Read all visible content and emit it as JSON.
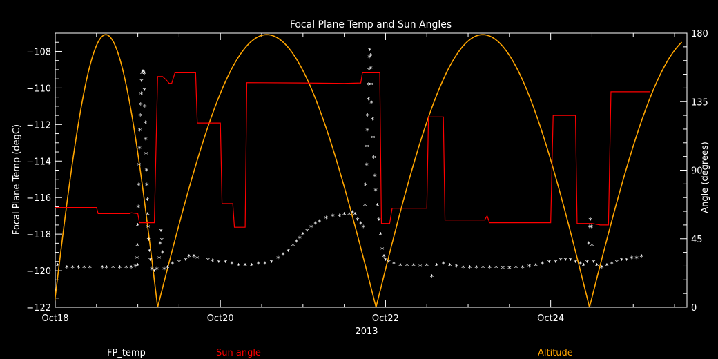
{
  "chart_data": {
    "type": "line",
    "title": "Focal Plane Temp and Sun Angles",
    "xlabel": "2013",
    "ylabel_left": "Focal Plane Temp (degC)",
    "ylabel_right": "Angle (degrees)",
    "x_unit": "day of October 2013",
    "xlim": [
      18,
      25.65
    ],
    "ylim_left": [
      -122,
      -107
    ],
    "ylim_right": [
      0,
      180
    ],
    "x_ticks": [
      {
        "x": 18,
        "label": "Oct18"
      },
      {
        "x": 20,
        "label": "Oct20"
      },
      {
        "x": 22,
        "label": "Oct22"
      },
      {
        "x": 24,
        "label": "Oct24"
      }
    ],
    "y_left_ticks": [
      -122,
      -120,
      -118,
      -116,
      -114,
      -112,
      -110,
      -108
    ],
    "y_right_ticks": [
      0,
      45,
      90,
      135,
      180
    ],
    "colors": {
      "fp_temp": "#ffffff",
      "sun_angle": "#ff0000",
      "altitude": "#ffa500",
      "axes": "#ffffff",
      "background": "#000000"
    },
    "series": [
      {
        "name": "FP_temp",
        "axis": "left",
        "style": "markers",
        "marker": "*",
        "points": [
          [
            18.03,
            -119.7
          ],
          [
            18.14,
            -119.8
          ],
          [
            18.21,
            -119.8
          ],
          [
            18.28,
            -119.8
          ],
          [
            18.35,
            -119.8
          ],
          [
            18.42,
            -119.8
          ],
          [
            18.57,
            -119.8
          ],
          [
            18.62,
            -119.8
          ],
          [
            18.7,
            -119.8
          ],
          [
            18.78,
            -119.8
          ],
          [
            18.86,
            -119.8
          ],
          [
            18.92,
            -119.8
          ],
          [
            18.97,
            -119.75
          ],
          [
            19.0,
            -119.7
          ],
          [
            18.99,
            -119.3
          ],
          [
            18.995,
            -118.6
          ],
          [
            19.0,
            -117.5
          ],
          [
            19.005,
            -116.5
          ],
          [
            19.01,
            -115.3
          ],
          [
            19.015,
            -114.2
          ],
          [
            19.02,
            -113.3
          ],
          [
            19.025,
            -112.3
          ],
          [
            19.03,
            -111.5
          ],
          [
            19.035,
            -110.9
          ],
          [
            19.04,
            -110.3
          ],
          [
            19.045,
            -109.6
          ],
          [
            19.05,
            -109.2
          ],
          [
            19.06,
            -109.1
          ],
          [
            19.07,
            -109.1
          ],
          [
            19.08,
            -109.2
          ],
          [
            19.08,
            -110.1
          ],
          [
            19.085,
            -111.0
          ],
          [
            19.09,
            -111.9
          ],
          [
            19.095,
            -112.8
          ],
          [
            19.1,
            -113.6
          ],
          [
            19.105,
            -114.5
          ],
          [
            19.11,
            -115.3
          ],
          [
            19.115,
            -116.1
          ],
          [
            19.12,
            -116.9
          ],
          [
            19.125,
            -117.6
          ],
          [
            19.13,
            -118.3
          ],
          [
            19.14,
            -118.9
          ],
          [
            19.15,
            -119.4
          ],
          [
            19.17,
            -119.9
          ],
          [
            19.2,
            -120.0
          ],
          [
            19.23,
            -119.9
          ],
          [
            19.26,
            -119.3
          ],
          [
            19.27,
            -118.5
          ],
          [
            19.28,
            -117.8
          ],
          [
            19.29,
            -118.3
          ],
          [
            19.3,
            -119.0
          ],
          [
            19.32,
            -119.9
          ],
          [
            19.36,
            -119.8
          ],
          [
            19.42,
            -119.6
          ],
          [
            19.5,
            -119.5
          ],
          [
            19.58,
            -119.4
          ],
          [
            19.62,
            -119.2
          ],
          [
            19.68,
            -119.2
          ],
          [
            19.72,
            -119.3
          ],
          [
            19.85,
            -119.4
          ],
          [
            19.9,
            -119.45
          ],
          [
            19.98,
            -119.5
          ],
          [
            20.06,
            -119.5
          ],
          [
            20.14,
            -119.6
          ],
          [
            20.22,
            -119.7
          ],
          [
            20.3,
            -119.7
          ],
          [
            20.38,
            -119.7
          ],
          [
            20.46,
            -119.6
          ],
          [
            20.54,
            -119.6
          ],
          [
            20.62,
            -119.5
          ],
          [
            20.7,
            -119.3
          ],
          [
            20.76,
            -119.1
          ],
          [
            20.82,
            -118.9
          ],
          [
            20.88,
            -118.6
          ],
          [
            20.92,
            -118.4
          ],
          [
            20.96,
            -118.2
          ],
          [
            21.0,
            -118.0
          ],
          [
            21.05,
            -117.8
          ],
          [
            21.1,
            -117.6
          ],
          [
            21.15,
            -117.4
          ],
          [
            21.2,
            -117.3
          ],
          [
            21.28,
            -117.1
          ],
          [
            21.36,
            -117.0
          ],
          [
            21.44,
            -117.0
          ],
          [
            21.5,
            -116.9
          ],
          [
            21.56,
            -116.9
          ],
          [
            21.6,
            -116.8
          ],
          [
            21.63,
            -116.9
          ],
          [
            21.66,
            -117.2
          ],
          [
            21.7,
            -117.4
          ],
          [
            21.73,
            -117.6
          ],
          [
            21.75,
            -116.4
          ],
          [
            21.76,
            -115.3
          ],
          [
            21.77,
            -114.2
          ],
          [
            21.775,
            -113.2
          ],
          [
            21.78,
            -112.3
          ],
          [
            21.785,
            -111.5
          ],
          [
            21.79,
            -110.6
          ],
          [
            21.795,
            -109.8
          ],
          [
            21.8,
            -109.0
          ],
          [
            21.805,
            -108.3
          ],
          [
            21.81,
            -107.9
          ],
          [
            21.815,
            -108.2
          ],
          [
            21.82,
            -108.9
          ],
          [
            21.825,
            -109.8
          ],
          [
            21.83,
            -110.8
          ],
          [
            21.84,
            -111.7
          ],
          [
            21.85,
            -112.7
          ],
          [
            21.86,
            -113.8
          ],
          [
            21.87,
            -114.8
          ],
          [
            21.88,
            -115.6
          ],
          [
            21.9,
            -116.4
          ],
          [
            21.92,
            -117.2
          ],
          [
            21.94,
            -118.0
          ],
          [
            21.96,
            -118.8
          ],
          [
            21.98,
            -119.2
          ],
          [
            22.0,
            -119.4
          ],
          [
            22.04,
            -119.5
          ],
          [
            22.1,
            -119.6
          ],
          [
            22.18,
            -119.7
          ],
          [
            22.26,
            -119.7
          ],
          [
            22.34,
            -119.7
          ],
          [
            22.42,
            -119.75
          ],
          [
            22.5,
            -119.7
          ],
          [
            22.56,
            -120.3
          ],
          [
            22.62,
            -119.7
          ],
          [
            22.7,
            -119.6
          ],
          [
            22.78,
            -119.7
          ],
          [
            22.86,
            -119.75
          ],
          [
            22.94,
            -119.8
          ],
          [
            23.02,
            -119.8
          ],
          [
            23.1,
            -119.8
          ],
          [
            23.18,
            -119.8
          ],
          [
            23.26,
            -119.8
          ],
          [
            23.34,
            -119.8
          ],
          [
            23.42,
            -119.85
          ],
          [
            23.5,
            -119.85
          ],
          [
            23.58,
            -119.8
          ],
          [
            23.66,
            -119.8
          ],
          [
            23.74,
            -119.75
          ],
          [
            23.82,
            -119.7
          ],
          [
            23.9,
            -119.6
          ],
          [
            23.98,
            -119.5
          ],
          [
            24.06,
            -119.5
          ],
          [
            24.12,
            -119.4
          ],
          [
            24.18,
            -119.4
          ],
          [
            24.24,
            -119.4
          ],
          [
            24.3,
            -119.5
          ],
          [
            24.36,
            -119.6
          ],
          [
            24.4,
            -119.7
          ],
          [
            24.44,
            -119.5
          ],
          [
            24.46,
            -118.5
          ],
          [
            24.47,
            -117.6
          ],
          [
            24.48,
            -117.2
          ],
          [
            24.49,
            -117.6
          ],
          [
            24.5,
            -118.6
          ],
          [
            24.52,
            -119.5
          ],
          [
            24.56,
            -119.7
          ],
          [
            24.62,
            -119.8
          ],
          [
            24.68,
            -119.7
          ],
          [
            24.74,
            -119.6
          ],
          [
            24.8,
            -119.5
          ],
          [
            24.86,
            -119.4
          ],
          [
            24.92,
            -119.4
          ],
          [
            24.98,
            -119.3
          ],
          [
            25.04,
            -119.3
          ],
          [
            25.1,
            -119.2
          ]
        ]
      },
      {
        "name": "Sun angle",
        "axis": "right",
        "style": "step",
        "points": [
          [
            18.0,
            65.5
          ],
          [
            18.5,
            65.5
          ],
          [
            18.52,
            61.5
          ],
          [
            18.9,
            61.5
          ],
          [
            18.92,
            62
          ],
          [
            19.0,
            61.5
          ],
          [
            19.02,
            55.5
          ],
          [
            19.2,
            55.5
          ],
          [
            19.24,
            151.5
          ],
          [
            19.3,
            151.5
          ],
          [
            19.35,
            149
          ],
          [
            19.38,
            147
          ],
          [
            19.41,
            147
          ],
          [
            19.45,
            154
          ],
          [
            19.6,
            154
          ],
          [
            19.62,
            154
          ],
          [
            19.65,
            154
          ],
          [
            19.7,
            154
          ],
          [
            19.72,
            121
          ],
          [
            20.0,
            121
          ],
          [
            20.02,
            68
          ],
          [
            20.15,
            68
          ],
          [
            20.17,
            52.5
          ],
          [
            20.3,
            52.5
          ],
          [
            20.32,
            147.5
          ],
          [
            21.0,
            147.3
          ],
          [
            21.5,
            147
          ],
          [
            21.7,
            147.3
          ],
          [
            21.72,
            154
          ],
          [
            21.93,
            154
          ],
          [
            21.95,
            55
          ],
          [
            22.05,
            55
          ],
          [
            22.08,
            65
          ],
          [
            22.5,
            65
          ],
          [
            22.52,
            125
          ],
          [
            22.7,
            125
          ],
          [
            22.72,
            57.3
          ],
          [
            23.2,
            57.3
          ],
          [
            23.23,
            60
          ],
          [
            23.26,
            55.5
          ],
          [
            23.8,
            55.5
          ],
          [
            24.0,
            55.5
          ],
          [
            24.03,
            126
          ],
          [
            24.3,
            126
          ],
          [
            24.32,
            55
          ],
          [
            24.5,
            55
          ],
          [
            24.6,
            54
          ],
          [
            24.7,
            54
          ],
          [
            24.73,
            141.5
          ],
          [
            25.0,
            141.5
          ],
          [
            25.2,
            141.5
          ]
        ]
      },
      {
        "name": "Altitude",
        "axis": "right",
        "style": "line",
        "arches": [
          {
            "start": 17.985,
            "end": 19.24
          },
          {
            "start": 19.24,
            "end": 21.885
          },
          {
            "start": 21.885,
            "end": 24.47
          },
          {
            "start": 24.47,
            "end": 27.1
          }
        ],
        "peak": 179,
        "x_end": 25.6
      }
    ]
  },
  "legend": [
    {
      "name": "FP_temp",
      "color": "#ffffff"
    },
    {
      "name": "Sun angle",
      "color": "#ff0000"
    },
    {
      "name": "Altitude",
      "color": "#ffa500"
    }
  ]
}
